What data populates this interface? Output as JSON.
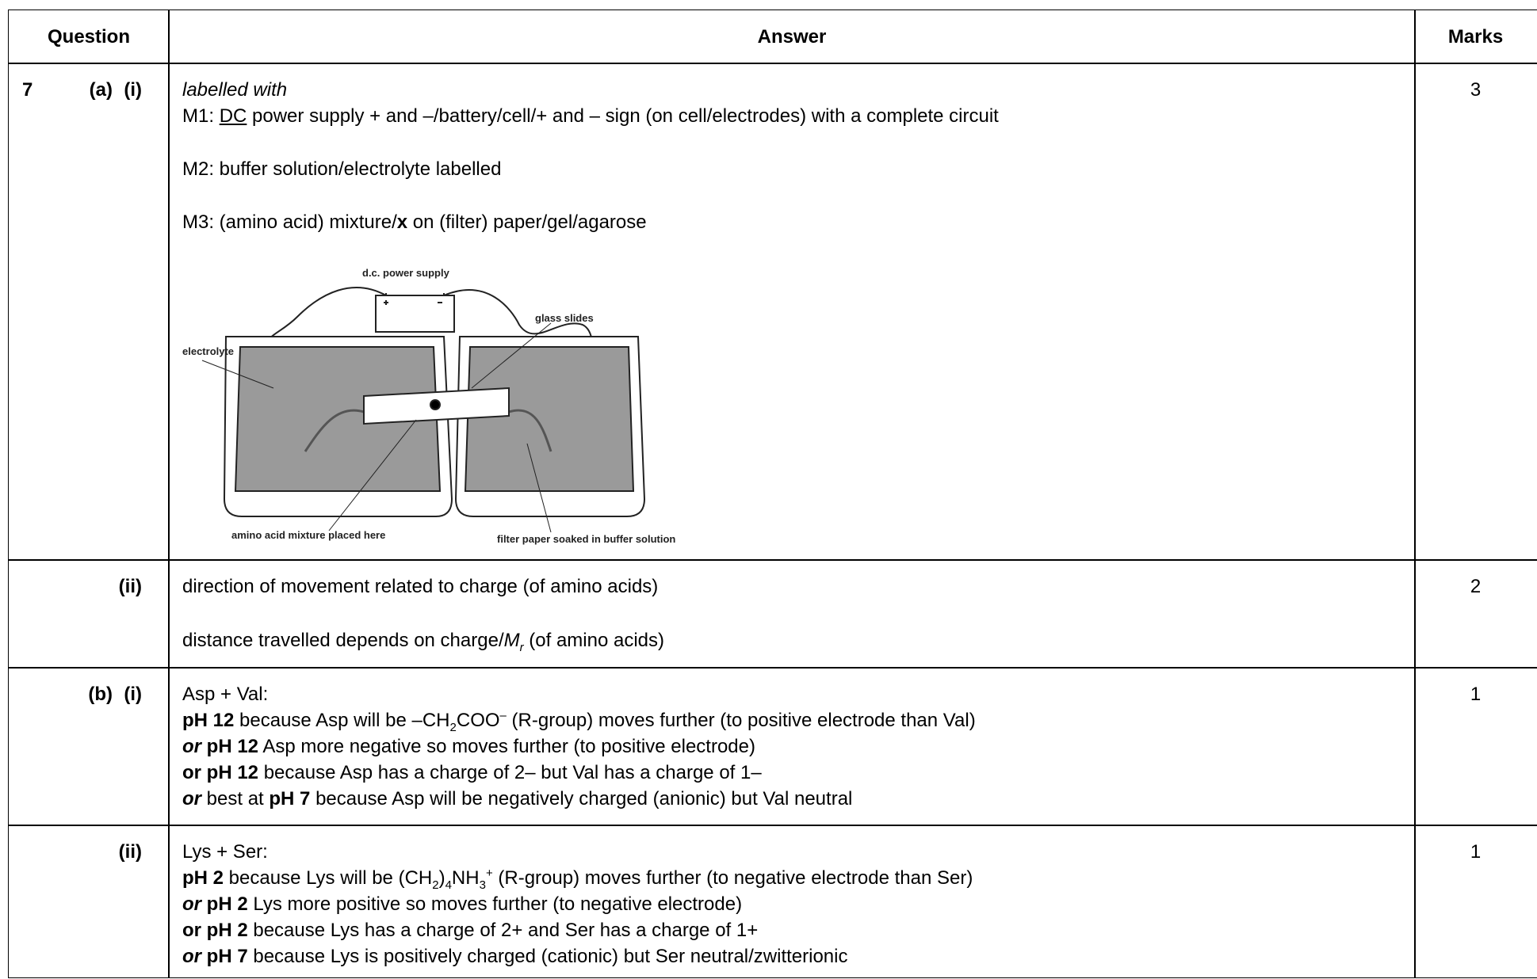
{
  "header": {
    "question": "Question",
    "answer": "Answer",
    "marks": "Marks"
  },
  "rows": [
    {
      "question": [
        "7",
        "(a)",
        "(i)"
      ],
      "answer": [
        [
          "labelled with"
        ],
        [
          "M1: ",
          "DC",
          " power supply + and –/battery/cell/+ and – sign (on cell/electrodes) with a complete circuit"
        ],
        [
          "M2: buffer solution/electrolyte labelled"
        ],
        [
          "M3: (amino acid) mixture/",
          "x",
          " on (filter) paper/gel/agarose"
        ]
      ],
      "diagram": {
        "power": "d.c. power supply",
        "slides": "glass slides",
        "electrolyte": "electrolyte",
        "mixture": "amino acid mixture placed here",
        "paper": "filter paper soaked in buffer solution"
      },
      "marks": "3"
    },
    {
      "question": [
        "(ii)"
      ],
      "answer": [
        [
          "direction of movement related to charge (of amino acids)"
        ],
        [
          "distance travelled depends on charge/",
          "M",
          "r",
          " (of amino acids)"
        ]
      ],
      "marks": "2"
    },
    {
      "question": [
        "(b)",
        "(i)"
      ],
      "answer": [
        [
          "Asp + Val:"
        ],
        [
          "pH 12",
          " because Asp will be –CH",
          "2",
          "COO",
          "–",
          " (R-group) moves further (to positive electrode than Val)"
        ],
        [
          "or",
          " pH 12",
          " Asp more negative so moves further (to positive electrode)"
        ],
        [
          "or pH 12",
          " because Asp has a charge of 2– but Val has a charge of 1–"
        ],
        [
          "or",
          " best at ",
          "pH 7",
          " because Asp will be negatively charged (anionic) but Val neutral"
        ]
      ],
      "marks": "1"
    },
    {
      "question": [
        "(ii)"
      ],
      "answer": [
        [
          "Lys + Ser:"
        ],
        [
          "pH 2",
          " because Lys will be (CH",
          "2",
          ")",
          "4",
          "NH",
          "3",
          "+",
          " (R-group) moves further (to negative electrode than Ser)"
        ],
        [
          "or",
          " pH 2",
          " Lys more positive so moves further (to negative electrode)"
        ],
        [
          "or pH 2",
          " because Lys has a charge of 2+ and Ser has a charge of 1+"
        ],
        [
          "or",
          " pH 7",
          " because Lys is positively charged (cationic) but Ser neutral/zwitterionic"
        ]
      ],
      "marks": "1"
    }
  ]
}
